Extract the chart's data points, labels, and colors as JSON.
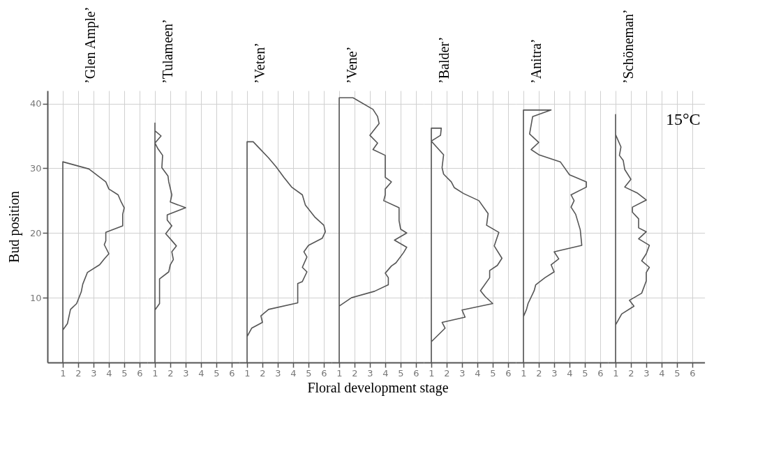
{
  "chart_data": [
    {
      "type": "line",
      "title": "’Glen Ample’",
      "ylabel": "Bud position",
      "color": "#555555",
      "x": [
        1,
        1,
        2.7,
        3.8,
        4.0,
        4.6,
        4.8,
        5.0,
        4.9,
        4.9,
        3.8,
        3.8,
        3.7,
        4.0,
        3.7,
        3.4,
        2.6,
        2.3,
        2.2,
        1.9,
        1.5,
        1.3,
        1
      ],
      "values": [
        0,
        31,
        29.9,
        27.9,
        26.8,
        25.9,
        24.8,
        23.9,
        22.9,
        21.1,
        20.1,
        18.8,
        18.2,
        16.8,
        16.0,
        15.1,
        13.9,
        12.1,
        10.9,
        9.1,
        8.2,
        6.0,
        5.0
      ],
      "xlim": [
        0,
        6.5
      ],
      "xticks": [
        1,
        2,
        3,
        4,
        5,
        6
      ],
      "ylim": [
        0,
        42
      ],
      "yticks": [
        10,
        20,
        30,
        40
      ],
      "grid": true
    },
    {
      "type": "line",
      "title": "’Tulameen’",
      "color": "#555555",
      "x": [
        1,
        1,
        1,
        1.4,
        1.0,
        1.2,
        1.5,
        1.45,
        1.85,
        1.9,
        2.1,
        2.0,
        3.0,
        1.8,
        1.8,
        2.1,
        1.7,
        2.0,
        2.4,
        2.1,
        2.2,
        2.0,
        1.9,
        1.3,
        1.3,
        1.0
      ],
      "values": [
        0,
        37,
        35.8,
        35,
        33.9,
        33,
        32,
        30.1,
        28.8,
        27.9,
        25.9,
        24.8,
        23.9,
        22.8,
        22.0,
        21.1,
        19.9,
        19.1,
        18.0,
        17.1,
        15.9,
        15.1,
        14.0,
        12.9,
        9.1,
        8.1
      ],
      "xlim": [
        0.5,
        6.5
      ],
      "xticks": [
        1,
        2,
        3,
        4,
        5,
        6
      ],
      "ylim": [
        0,
        42
      ],
      "yticks": [
        10,
        20,
        30,
        40
      ],
      "grid": true,
      "tick_labels": "x"
    },
    {
      "type": "line",
      "title": "’Veten’",
      "color": "#555555",
      "x": [
        1,
        1,
        1.4,
        1.8,
        2.4,
        2.9,
        3.4,
        3.9,
        4.6,
        4.8,
        5.4,
        6.0,
        6.1,
        5.9,
        5.0,
        4.7,
        4.9,
        4.6,
        4.9,
        4.6,
        4.3,
        4.3,
        2.4,
        1.9,
        2.0,
        1.3,
        1
      ],
      "values": [
        0,
        34.1,
        34.1,
        33.1,
        31.6,
        30.2,
        28.6,
        27.1,
        25.9,
        24.3,
        22.5,
        21.2,
        20.2,
        19.2,
        18.1,
        17.1,
        16.3,
        14.7,
        14.0,
        12.5,
        12.2,
        9.2,
        8.2,
        7.2,
        6.2,
        5.3,
        4.0
      ],
      "xlim": [
        0.5,
        6.5
      ],
      "xticks": [
        1,
        2,
        3,
        4,
        5,
        6
      ],
      "ylim": [
        0,
        42
      ],
      "yticks": [
        10,
        20,
        30,
        40
      ],
      "grid": true,
      "tick_labels": "x"
    },
    {
      "type": "line",
      "title": "’Vene’",
      "xlabel": "Floral development stage",
      "color": "#555555",
      "x": [
        1,
        1,
        1.9,
        3.2,
        3.5,
        3.6,
        3.0,
        3.5,
        3.2,
        4.0,
        4.0,
        4.0,
        4.4,
        4.0,
        4.0,
        3.9,
        4.9,
        4.9,
        5.0,
        5.4,
        4.6,
        5.4,
        5.2,
        4.7,
        4.4,
        4.0,
        4.2,
        4.2,
        3.3,
        1.8,
        1
      ],
      "values": [
        0,
        40.9,
        40.9,
        39.1,
        38.0,
        36.9,
        35.1,
        33.9,
        32.9,
        32.0,
        30.0,
        28.6,
        27.9,
        26.8,
        25.9,
        25.0,
        23.9,
        21.9,
        20.6,
        20.0,
        18.9,
        17.8,
        17.0,
        15.4,
        14.9,
        13.8,
        13.1,
        12.0,
        11.0,
        10.0,
        8.7
      ],
      "xlim": [
        0.5,
        6.5
      ],
      "xticks": [
        1,
        2,
        3,
        4,
        5,
        6
      ],
      "ylim": [
        0,
        42
      ],
      "yticks": [
        10,
        20,
        30,
        40
      ],
      "grid": true,
      "tick_labels": "x"
    },
    {
      "type": "line",
      "title": "’Balder’",
      "color": "#555555",
      "x": [
        1,
        1,
        1.65,
        1.6,
        1.0,
        1.8,
        1.7,
        1.8,
        2.3,
        2.5,
        3.1,
        4.1,
        4.7,
        4.6,
        5.4,
        5.1,
        5.6,
        5.3,
        4.8,
        4.8,
        4.2,
        4.5,
        5.0,
        3.0,
        3.2,
        1.7,
        1.9,
        1
      ],
      "values": [
        0,
        36.2,
        36.2,
        35.1,
        34.2,
        32.1,
        30.1,
        29.1,
        27.9,
        27.0,
        26.1,
        25.0,
        23.0,
        21.2,
        20.1,
        18.0,
        16.1,
        15.0,
        14.2,
        13.1,
        11.1,
        10.2,
        9.1,
        8.1,
        7.0,
        6.2,
        5.3,
        3.2
      ],
      "xlim": [
        0.5,
        6.5
      ],
      "xticks": [
        1,
        2,
        3,
        4,
        5,
        6
      ],
      "ylim": [
        0,
        42
      ],
      "yticks": [
        10,
        20,
        30,
        40
      ],
      "grid": true,
      "tick_labels": "x"
    },
    {
      "type": "line",
      "title": "’Anitra’",
      "color": "#555555",
      "x": [
        1,
        1,
        2.8,
        1.6,
        1.4,
        2.0,
        1.5,
        2.0,
        3.4,
        4.0,
        5.1,
        5.1,
        4.1,
        4.3,
        4.1,
        4.4,
        4.7,
        4.8,
        3.0,
        3.3,
        2.8,
        3.0,
        2.4,
        1.8,
        1.7,
        1.3,
        1.2,
        1
      ],
      "values": [
        0,
        39,
        39,
        38.0,
        35.3,
        34.0,
        32.9,
        32.1,
        31.0,
        29.0,
        27.9,
        27.1,
        25.9,
        25.0,
        24.0,
        22.9,
        20.5,
        18.1,
        17.1,
        16.0,
        15.1,
        14.0,
        13.1,
        12.0,
        11.1,
        9.1,
        8.2,
        7.1
      ],
      "xlim": [
        0.5,
        6.5
      ],
      "xticks": [
        1,
        2,
        3,
        4,
        5,
        6
      ],
      "ylim": [
        0,
        42
      ],
      "yticks": [
        10,
        20,
        30,
        40
      ],
      "grid": true,
      "tick_labels": "x"
    },
    {
      "type": "line",
      "title": "’Schöneman’",
      "annotations": [
        "15°C"
      ],
      "color": "#555555",
      "x": [
        1,
        1,
        1,
        1.35,
        1.25,
        1.5,
        1.6,
        2.0,
        1.6,
        2.4,
        3.0,
        2.1,
        2.1,
        2.5,
        2.5,
        3.0,
        2.5,
        3.2,
        3.0,
        2.7,
        3.2,
        3.0,
        3.0,
        2.7,
        1.9,
        2.2,
        1.4,
        1
      ],
      "values": [
        0,
        38.3,
        35.2,
        33.3,
        32.0,
        31.2,
        29.8,
        28.3,
        27.1,
        26.2,
        25.1,
        24.0,
        23.2,
        22.2,
        20.8,
        20.2,
        19.1,
        18.1,
        16.8,
        15.7,
        14.7,
        13.9,
        12.6,
        10.7,
        9.6,
        8.7,
        7.5,
        5.8
      ],
      "xlim": [
        0.5,
        6.8
      ],
      "xticks": [
        1,
        2,
        3,
        4,
        5,
        6
      ],
      "ylim": [
        0,
        42
      ],
      "yticks": [
        10,
        20,
        30,
        40
      ],
      "grid": true,
      "tick_labels": "x"
    }
  ]
}
